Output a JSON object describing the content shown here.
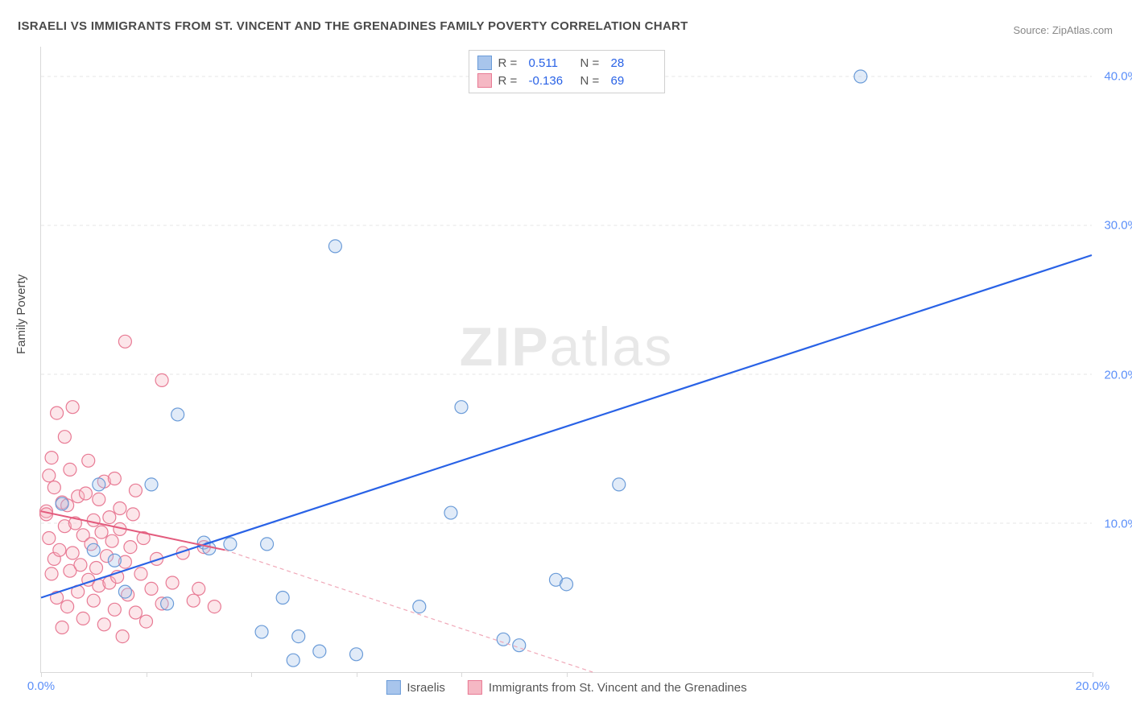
{
  "title": "ISRAELI VS IMMIGRANTS FROM ST. VINCENT AND THE GRENADINES FAMILY POVERTY CORRELATION CHART",
  "source_label": "Source: ZipAtlas.com",
  "y_axis_title": "Family Poverty",
  "watermark": "ZIPatlas",
  "chart": {
    "type": "scatter",
    "background_color": "#ffffff",
    "grid_color": "#e5e5e5",
    "axis_color": "#d9d9d9",
    "tick_label_color": "#5b8ff9",
    "tick_fontsize": 15,
    "xlim": [
      0,
      20
    ],
    "ylim": [
      0,
      42
    ],
    "x_ticks": [
      0,
      2,
      4,
      6,
      8,
      10,
      20
    ],
    "x_tick_labels": {
      "0": "0.0%",
      "20": "20.0%"
    },
    "y_ticks": [
      10,
      20,
      30,
      40
    ],
    "y_tick_labels": {
      "10": "10.0%",
      "20": "20.0%",
      "30": "30.0%",
      "40": "40.0%"
    },
    "marker_radius": 8,
    "marker_stroke_width": 1.2,
    "marker_fill_opacity": 0.35,
    "series": [
      {
        "name": "Israelis",
        "color_fill": "#a8c5ec",
        "color_stroke": "#6a9bd8",
        "points": [
          [
            0.4,
            11.3
          ],
          [
            1.0,
            8.2
          ],
          [
            1.1,
            12.6
          ],
          [
            1.4,
            7.5
          ],
          [
            1.6,
            5.4
          ],
          [
            2.1,
            12.6
          ],
          [
            2.4,
            4.6
          ],
          [
            2.6,
            17.3
          ],
          [
            3.1,
            8.7
          ],
          [
            3.2,
            8.3
          ],
          [
            3.6,
            8.6
          ],
          [
            4.2,
            2.7
          ],
          [
            4.3,
            8.6
          ],
          [
            4.6,
            5.0
          ],
          [
            4.8,
            0.8
          ],
          [
            4.9,
            2.4
          ],
          [
            5.3,
            1.4
          ],
          [
            5.6,
            28.6
          ],
          [
            6.0,
            1.2
          ],
          [
            7.2,
            4.4
          ],
          [
            7.8,
            10.7
          ],
          [
            8.0,
            17.8
          ],
          [
            8.8,
            2.2
          ],
          [
            9.1,
            1.8
          ],
          [
            9.8,
            6.2
          ],
          [
            11.0,
            12.6
          ],
          [
            15.6,
            40.0
          ],
          [
            10.0,
            5.9
          ]
        ],
        "trend": {
          "x1": 0,
          "y1": 5.0,
          "x2": 20,
          "y2": 28.0,
          "color": "#2962e6",
          "width": 2.2,
          "dash": "none"
        },
        "trend_extrap": null,
        "stats": {
          "R": "0.511",
          "N": "28"
        }
      },
      {
        "name": "Immigrants from St. Vincent and the Grenadines",
        "color_fill": "#f5b8c4",
        "color_stroke": "#e87a94",
        "points": [
          [
            0.1,
            10.8
          ],
          [
            0.1,
            10.6
          ],
          [
            0.15,
            9.0
          ],
          [
            0.15,
            13.2
          ],
          [
            0.2,
            14.4
          ],
          [
            0.2,
            6.6
          ],
          [
            0.25,
            7.6
          ],
          [
            0.25,
            12.4
          ],
          [
            0.3,
            5.0
          ],
          [
            0.3,
            17.4
          ],
          [
            0.35,
            8.2
          ],
          [
            0.4,
            3.0
          ],
          [
            0.4,
            11.4
          ],
          [
            0.45,
            15.8
          ],
          [
            0.45,
            9.8
          ],
          [
            0.5,
            11.2
          ],
          [
            0.5,
            4.4
          ],
          [
            0.55,
            6.8
          ],
          [
            0.55,
            13.6
          ],
          [
            0.6,
            8.0
          ],
          [
            0.6,
            17.8
          ],
          [
            0.65,
            10.0
          ],
          [
            0.7,
            5.4
          ],
          [
            0.7,
            11.8
          ],
          [
            0.75,
            7.2
          ],
          [
            0.8,
            3.6
          ],
          [
            0.8,
            9.2
          ],
          [
            0.85,
            12.0
          ],
          [
            0.9,
            6.2
          ],
          [
            0.9,
            14.2
          ],
          [
            0.95,
            8.6
          ],
          [
            1.0,
            10.2
          ],
          [
            1.0,
            4.8
          ],
          [
            1.05,
            7.0
          ],
          [
            1.1,
            11.6
          ],
          [
            1.1,
            5.8
          ],
          [
            1.15,
            9.4
          ],
          [
            1.2,
            3.2
          ],
          [
            1.2,
            12.8
          ],
          [
            1.25,
            7.8
          ],
          [
            1.3,
            6.0
          ],
          [
            1.3,
            10.4
          ],
          [
            1.35,
            8.8
          ],
          [
            1.4,
            4.2
          ],
          [
            1.4,
            13.0
          ],
          [
            1.45,
            6.4
          ],
          [
            1.5,
            9.6
          ],
          [
            1.5,
            11.0
          ],
          [
            1.55,
            2.4
          ],
          [
            1.6,
            7.4
          ],
          [
            1.6,
            22.2
          ],
          [
            1.65,
            5.2
          ],
          [
            1.7,
            8.4
          ],
          [
            1.75,
            10.6
          ],
          [
            1.8,
            4.0
          ],
          [
            1.8,
            12.2
          ],
          [
            1.9,
            6.6
          ],
          [
            1.95,
            9.0
          ],
          [
            2.0,
            3.4
          ],
          [
            2.1,
            5.6
          ],
          [
            2.2,
            7.6
          ],
          [
            2.3,
            4.6
          ],
          [
            2.3,
            19.6
          ],
          [
            2.5,
            6.0
          ],
          [
            2.7,
            8.0
          ],
          [
            2.9,
            4.8
          ],
          [
            3.0,
            5.6
          ],
          [
            3.1,
            8.4
          ],
          [
            3.3,
            4.4
          ]
        ],
        "trend": {
          "x1": 0,
          "y1": 10.8,
          "x2": 3.5,
          "y2": 8.2,
          "color": "#e35b7d",
          "width": 2.0,
          "dash": "none"
        },
        "trend_extrap": {
          "x1": 3.5,
          "y1": 8.2,
          "x2": 10.5,
          "y2": 0,
          "color": "#f0a8b8",
          "width": 1.2,
          "dash": "5,4"
        },
        "stats": {
          "R": "-0.136",
          "N": "69"
        }
      }
    ]
  },
  "legend_top": {
    "r_label": "R =",
    "n_label": "N ="
  },
  "legend_bottom": [
    {
      "label": "Israelis",
      "fill": "#a8c5ec",
      "stroke": "#6a9bd8"
    },
    {
      "label": "Immigrants from St. Vincent and the Grenadines",
      "fill": "#f5b8c4",
      "stroke": "#e87a94"
    }
  ]
}
